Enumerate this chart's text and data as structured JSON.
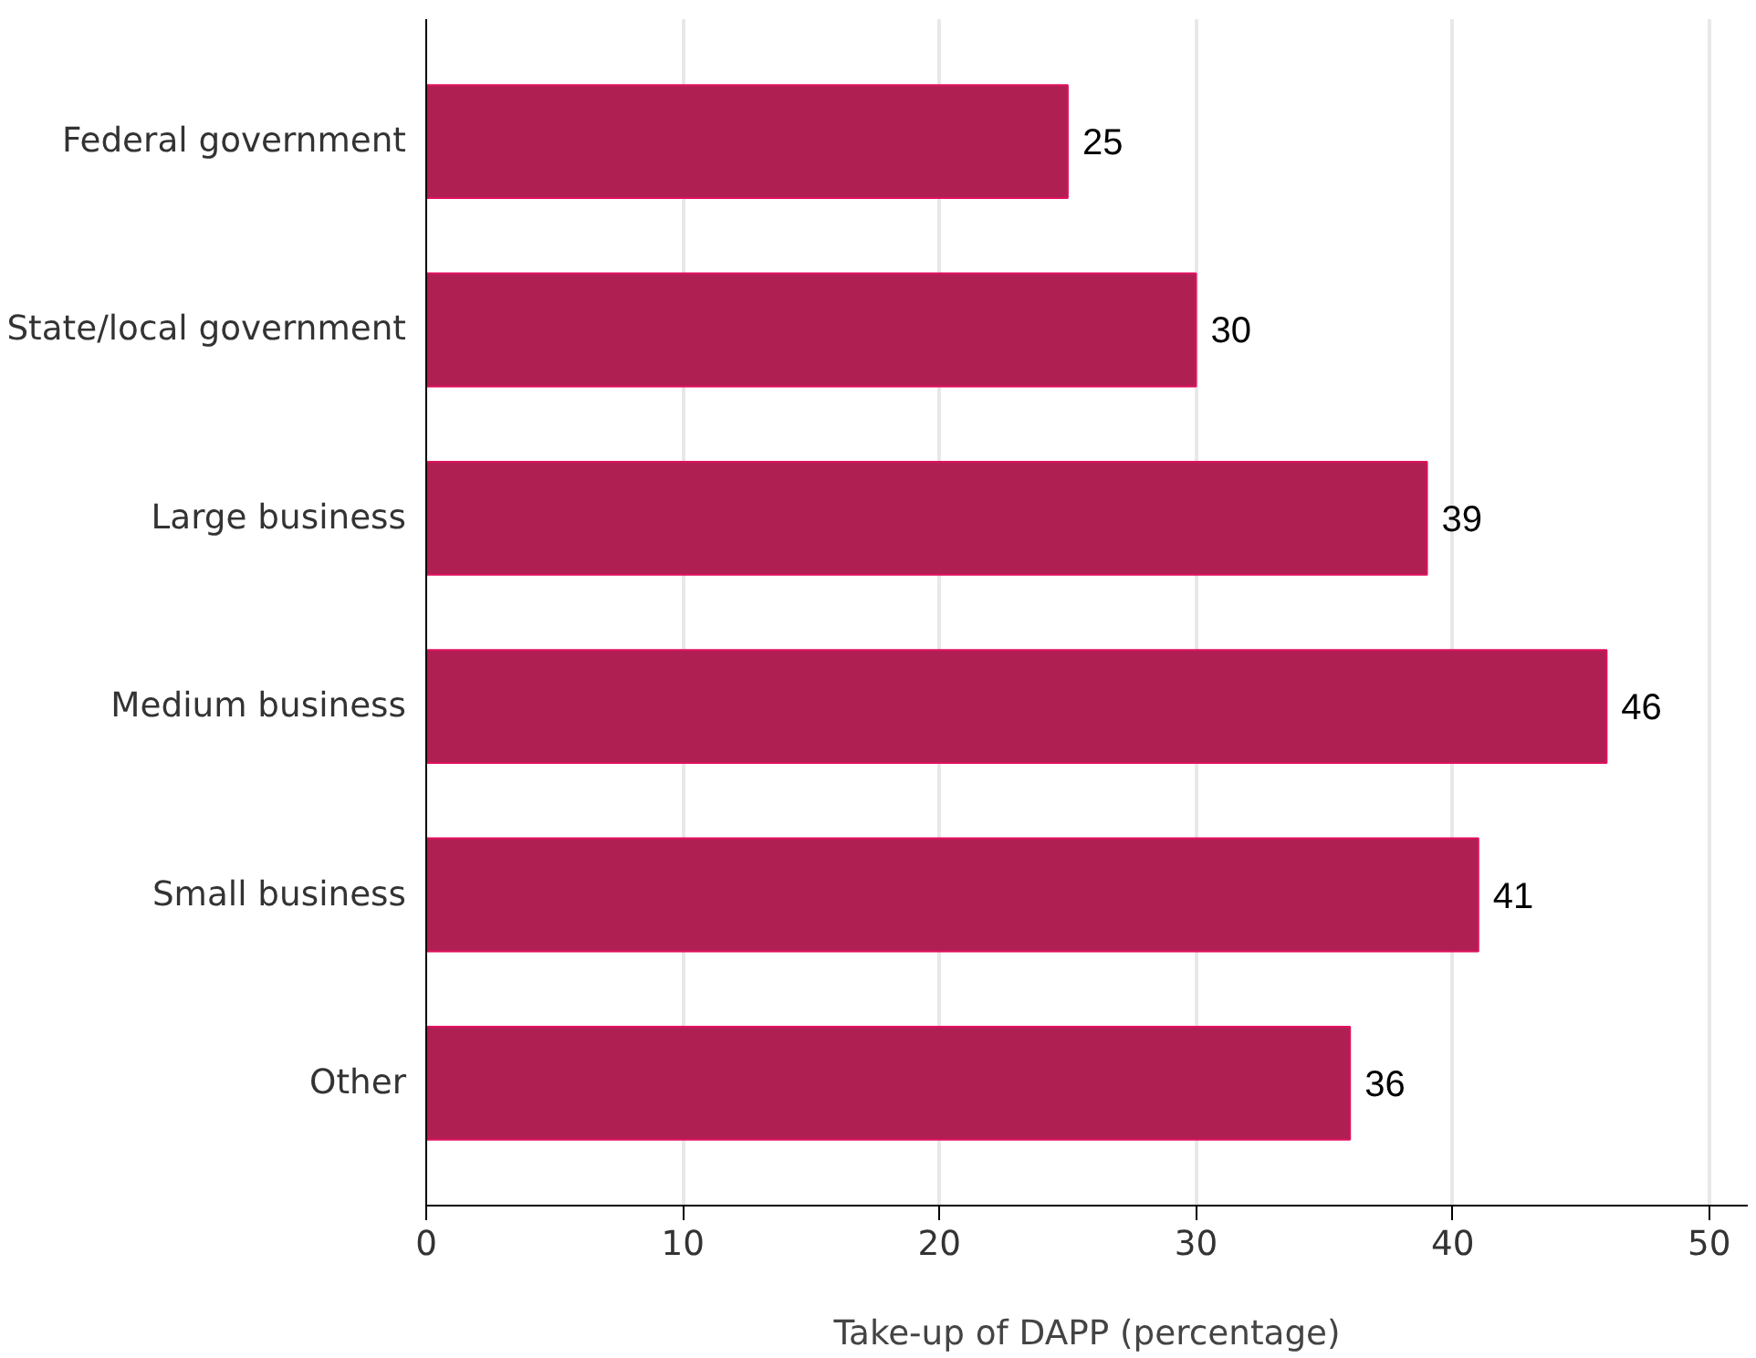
{
  "chart_data": {
    "type": "bar",
    "orientation": "horizontal",
    "xlabel": "Take-up of DAPP (percentage)",
    "categories": [
      "Federal government",
      "State/local government",
      "Large business",
      "Medium business",
      "Small business",
      "Other"
    ],
    "values": [
      25,
      30,
      39,
      46,
      41,
      36
    ],
    "color": "#b01f52",
    "xlim": [
      0,
      51.5
    ],
    "xticks": [
      0,
      10,
      20,
      30,
      40,
      50
    ],
    "grid": "x",
    "data_labels": true
  }
}
